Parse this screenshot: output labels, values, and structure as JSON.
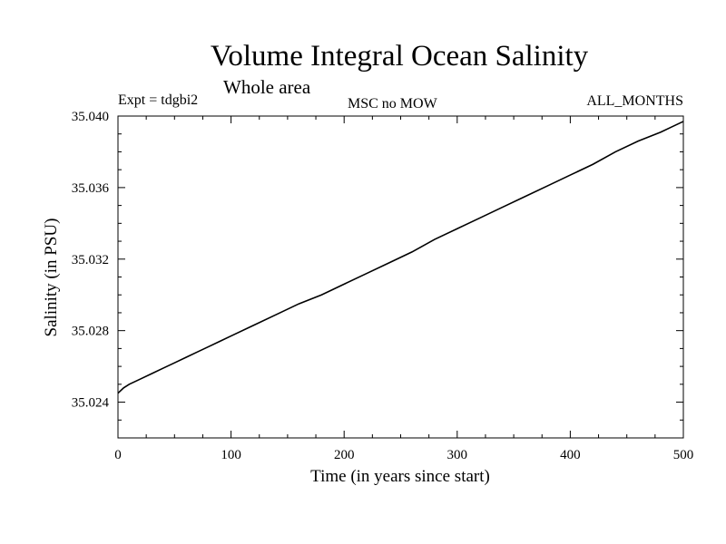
{
  "header": {
    "title": "Volume Integral Ocean Salinity",
    "subtitle": "Whole area",
    "left_note": "Expt = tdgbi2",
    "center_note": "MSC no MOW",
    "right_note": "ALL_MONTHS"
  },
  "chart_data": {
    "type": "line",
    "title": "Volume Integral Ocean Salinity",
    "subtitle": "Whole area",
    "xlabel": "Time (in years since start)",
    "ylabel": "Salinity (in PSU)",
    "xlim": [
      0,
      500
    ],
    "ylim": [
      35.022,
      35.04
    ],
    "xticks": [
      0,
      100,
      200,
      300,
      400,
      500
    ],
    "xtick_labels": [
      "0",
      "100",
      "200",
      "300",
      "400",
      "500"
    ],
    "yticks": [
      35.024,
      35.028,
      35.032,
      35.036,
      35.04
    ],
    "ytick_labels": [
      "35.024",
      "35.028",
      "35.032",
      "35.036",
      "35.040"
    ],
    "grid": false,
    "line_color": "#000000",
    "series": [
      {
        "x": [
          0,
          5,
          10,
          20,
          30,
          40,
          50,
          60,
          70,
          80,
          90,
          100,
          120,
          140,
          160,
          180,
          200,
          220,
          240,
          260,
          280,
          300,
          320,
          340,
          360,
          380,
          400,
          420,
          440,
          460,
          480,
          490,
          500
        ],
        "values": [
          35.0245,
          35.0248,
          35.025,
          35.0253,
          35.0256,
          35.0259,
          35.0262,
          35.0265,
          35.0268,
          35.0271,
          35.0274,
          35.0277,
          35.0283,
          35.0289,
          35.0295,
          35.03,
          35.0306,
          35.0312,
          35.0318,
          35.0324,
          35.0331,
          35.0337,
          35.0343,
          35.0349,
          35.0355,
          35.0361,
          35.0367,
          35.0373,
          35.038,
          35.0386,
          35.0391,
          35.0394,
          35.0397
        ]
      }
    ]
  }
}
